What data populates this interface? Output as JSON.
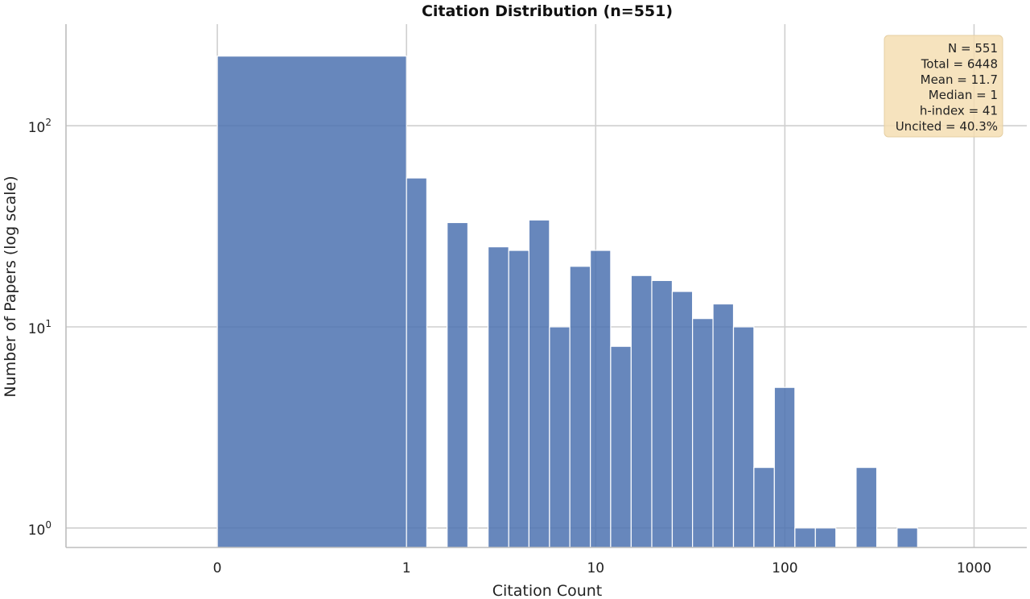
{
  "chart_data": {
    "type": "bar",
    "title": "Citation Distribution (n=551)",
    "xlabel": "Citation Count",
    "ylabel": "Number of Papers (log scale)",
    "x_scale": "symlog",
    "y_scale": "log",
    "ylim": [
      0.8,
      320
    ],
    "xlim": [
      -0.8,
      1900
    ],
    "x_ticks": [
      {
        "value": 0,
        "label": "0"
      },
      {
        "value": 1,
        "label": "1"
      },
      {
        "value": 10,
        "label": "10"
      },
      {
        "value": 100,
        "label": "100"
      },
      {
        "value": 1000,
        "label": "1000"
      }
    ],
    "y_ticks": [
      {
        "value": 1,
        "base": "10",
        "exp": "0"
      },
      {
        "value": 10,
        "base": "10",
        "exp": "1"
      },
      {
        "value": 100,
        "base": "10",
        "exp": "2"
      }
    ],
    "grid": true,
    "bins": [
      {
        "x0": 0,
        "x1": 1,
        "count": 222
      },
      {
        "x0": 1,
        "x1": 1.28,
        "count": 55
      },
      {
        "x0": 1.28,
        "x1": 1.64,
        "count": 0
      },
      {
        "x0": 1.64,
        "x1": 2.11,
        "count": 33
      },
      {
        "x0": 2.11,
        "x1": 2.7,
        "count": 0
      },
      {
        "x0": 2.7,
        "x1": 3.47,
        "count": 25
      },
      {
        "x0": 3.47,
        "x1": 4.44,
        "count": 24
      },
      {
        "x0": 4.44,
        "x1": 5.7,
        "count": 34
      },
      {
        "x0": 5.7,
        "x1": 7.3,
        "count": 10
      },
      {
        "x0": 7.3,
        "x1": 9.37,
        "count": 20
      },
      {
        "x0": 9.37,
        "x1": 12,
        "count": 24
      },
      {
        "x0": 12,
        "x1": 15.4,
        "count": 8
      },
      {
        "x0": 15.4,
        "x1": 19.8,
        "count": 18
      },
      {
        "x0": 19.8,
        "x1": 25.4,
        "count": 17
      },
      {
        "x0": 25.4,
        "x1": 32.5,
        "count": 15
      },
      {
        "x0": 32.5,
        "x1": 41.7,
        "count": 11
      },
      {
        "x0": 41.7,
        "x1": 53.5,
        "count": 13
      },
      {
        "x0": 53.5,
        "x1": 68.6,
        "count": 10
      },
      {
        "x0": 68.6,
        "x1": 88,
        "count": 2
      },
      {
        "x0": 88,
        "x1": 113,
        "count": 5
      },
      {
        "x0": 113,
        "x1": 145,
        "count": 1
      },
      {
        "x0": 145,
        "x1": 186,
        "count": 1
      },
      {
        "x0": 186,
        "x1": 238,
        "count": 0
      },
      {
        "x0": 238,
        "x1": 306,
        "count": 2
      },
      {
        "x0": 306,
        "x1": 392,
        "count": 0
      },
      {
        "x0": 392,
        "x1": 503,
        "count": 1
      },
      {
        "x0": 503,
        "x1": 645,
        "count": 0
      }
    ],
    "stats_box": {
      "placement": "top-right",
      "lines": [
        "N = 551",
        "Total = 6448",
        "Mean = 11.7",
        "Median = 1",
        "h-index = 41",
        "Uncited = 40.3%"
      ]
    },
    "colors": {
      "bar": "#4c72b0",
      "stats_box": "#f5deb3",
      "grid": "#cfcfcf"
    }
  }
}
